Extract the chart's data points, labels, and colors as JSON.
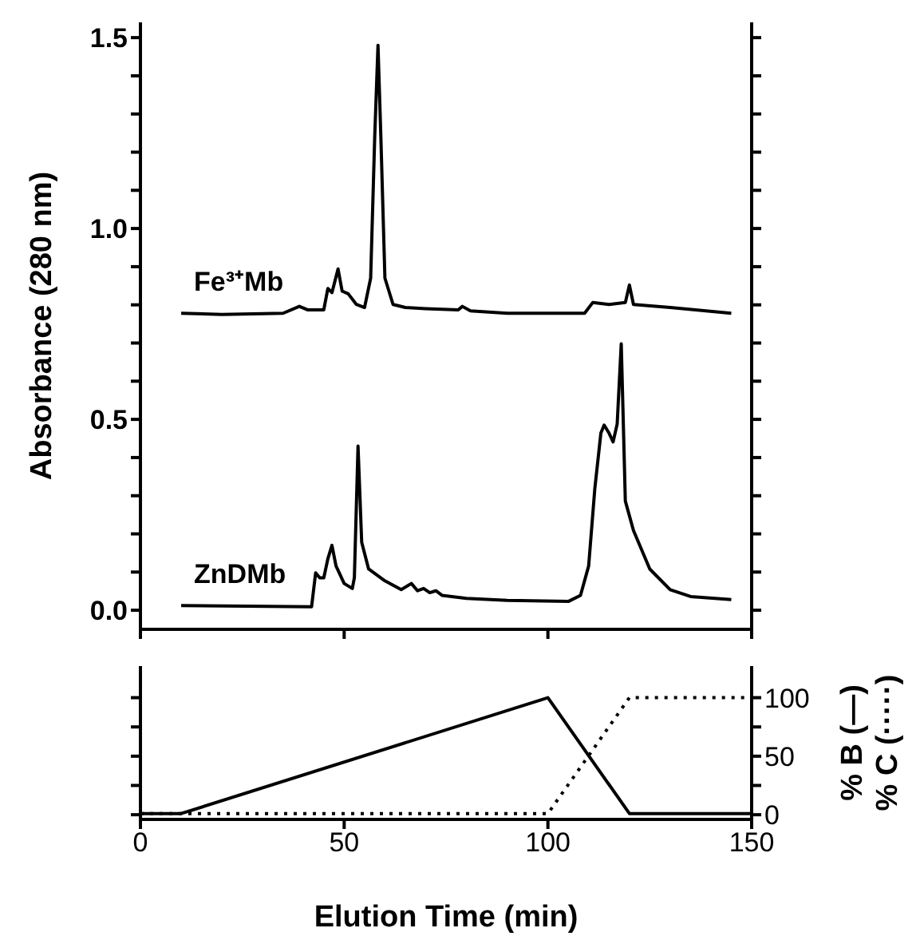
{
  "chart_data": [
    {
      "type": "line",
      "ylabel": "Absorbance (280 nm)",
      "xlim": [
        0,
        150
      ],
      "xticks": [
        0,
        50,
        100,
        150
      ],
      "ylim": [
        -0.05,
        1.54
      ],
      "yticks": [
        {
          "value": 0,
          "label": "0.0"
        },
        {
          "value": 0.1,
          "label": null
        },
        {
          "value": 0.2,
          "label": null
        },
        {
          "value": 0.3,
          "label": null
        },
        {
          "value": 0.4,
          "label": null
        },
        {
          "value": 0.5,
          "label": "0.5"
        },
        {
          "value": 0.6,
          "label": null
        },
        {
          "value": 0.7,
          "label": null
        },
        {
          "value": 0.8,
          "label": null
        },
        {
          "value": 0.9,
          "label": null
        },
        {
          "value": 1.0,
          "label": "1.0"
        },
        {
          "value": 1.1,
          "label": null
        },
        {
          "value": 1.2,
          "label": null
        },
        {
          "value": 1.3,
          "label": null
        },
        {
          "value": 1.4,
          "label": null
        },
        {
          "value": 1.5,
          "label": "1.5"
        }
      ],
      "tick_labels": "y",
      "series": [
        {
          "name": "Fe³⁺Mb",
          "color": "#000000",
          "x": [
            10,
            20,
            35,
            39,
            41,
            45,
            46,
            47,
            48.5,
            49.5,
            51,
            53,
            55,
            56.5,
            57.5,
            58.3,
            59,
            60,
            62,
            65,
            70,
            78,
            79,
            81,
            90,
            109,
            111,
            115,
            119,
            120,
            121,
            130,
            145
          ],
          "values": [
            0.778,
            0.775,
            0.778,
            0.796,
            0.787,
            0.787,
            0.843,
            0.832,
            0.894,
            0.836,
            0.829,
            0.801,
            0.793,
            0.87,
            1.241,
            1.48,
            1.241,
            0.87,
            0.801,
            0.793,
            0.79,
            0.787,
            0.796,
            0.784,
            0.778,
            0.778,
            0.806,
            0.801,
            0.806,
            0.852,
            0.801,
            0.793,
            0.778
          ]
        },
        {
          "name": "ZnDMb",
          "color": "#000000",
          "x": [
            10,
            42,
            43,
            44,
            45,
            46,
            47,
            48,
            50,
            52,
            52.5,
            53.4,
            54.3,
            56,
            60,
            64,
            66.5,
            68,
            69.5,
            71,
            72.5,
            74,
            80,
            90,
            105,
            108,
            110,
            111.5,
            113,
            113.8,
            115,
            116,
            117,
            118,
            119,
            121,
            125,
            130,
            135,
            145
          ],
          "values": [
            0.012,
            0.009,
            0.098,
            0.085,
            0.085,
            0.135,
            0.17,
            0.116,
            0.07,
            0.057,
            0.085,
            0.43,
            0.178,
            0.108,
            0.077,
            0.054,
            0.07,
            0.051,
            0.057,
            0.046,
            0.051,
            0.039,
            0.031,
            0.026,
            0.023,
            0.039,
            0.116,
            0.317,
            0.464,
            0.485,
            0.464,
            0.441,
            0.488,
            0.698,
            0.286,
            0.209,
            0.108,
            0.054,
            0.036,
            0.028
          ]
        }
      ]
    },
    {
      "type": "line",
      "xlabel": "Elution Time (min)",
      "y2label": "% B (—)\n% C (·····)",
      "xlim": [
        0,
        150
      ],
      "xticks": [
        0,
        50,
        100,
        150
      ],
      "y2lim": [
        -4,
        127
      ],
      "y2ticks": [
        0,
        {
          "value": 25,
          "label": null
        },
        50,
        {
          "value": 75,
          "label": null
        },
        100
      ],
      "series": [
        {
          "color": "#000000",
          "axis": "y2",
          "line_style": "solid",
          "x": [
            0,
            10,
            100,
            120,
            150
          ],
          "values": [
            1,
            1,
            100,
            1,
            1
          ]
        },
        {
          "color": "#000000",
          "axis": "y2",
          "line_style": "dotted",
          "x": [
            0,
            100,
            120,
            150
          ],
          "values": [
            1,
            1,
            100,
            100
          ]
        }
      ]
    }
  ]
}
